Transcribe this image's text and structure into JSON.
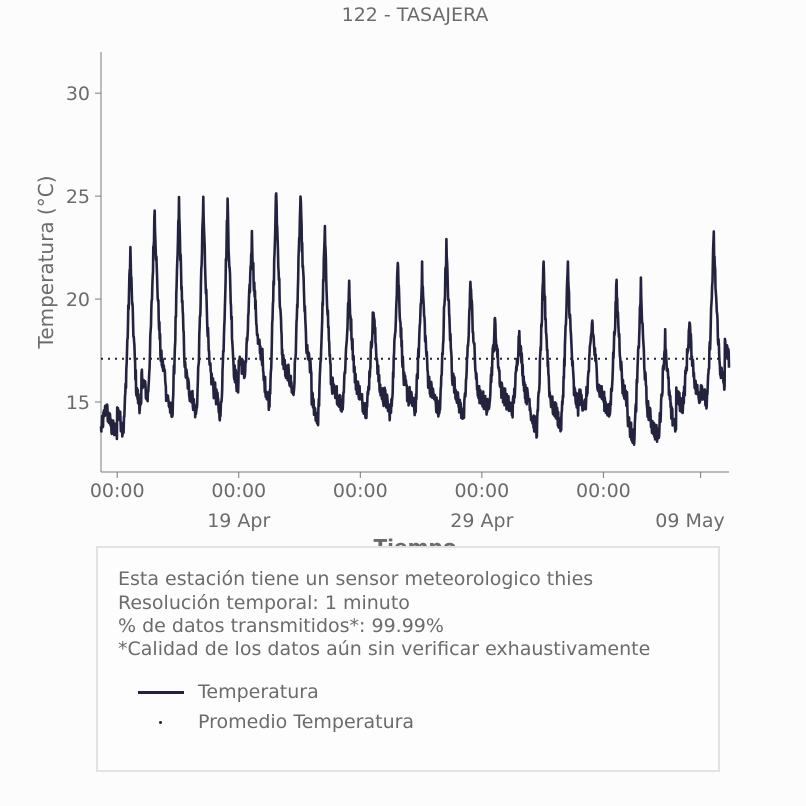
{
  "chart_data": {
    "type": "line",
    "title": "122 - TASAJERA",
    "xlabel": "Tiempo",
    "ylabel": "Temperatura (°C)",
    "ylim": [
      11.6,
      32
    ],
    "yticks": [
      15,
      20,
      25,
      30
    ],
    "x_range": [
      "2025-04-14T08:00",
      "2025-05-10T04:00"
    ],
    "xticks": [
      {
        "at": "2025-04-15T00:00",
        "label": "00:00",
        "sublabel": ""
      },
      {
        "at": "2025-04-20T00:00",
        "label": "00:00",
        "sublabel": "19 Apr"
      },
      {
        "at": "2025-04-25T00:00",
        "label": "00:00",
        "sublabel": ""
      },
      {
        "at": "2025-04-30T00:00",
        "label": "00:00",
        "sublabel": "29 Apr"
      },
      {
        "at": "2025-05-05T00:00",
        "label": "00:00",
        "sublabel": ""
      },
      {
        "at": "2025-05-09T00:00",
        "label": "",
        "sublabel": "09 May"
      }
    ],
    "series": [
      {
        "name": "Temperatura",
        "color": "#23233f",
        "style": "solid",
        "daily_min_max": [
          {
            "date": "2025-04-14",
            "min": 13.4,
            "max": 14.8
          },
          {
            "date": "2025-04-15",
            "min": 13.6,
            "max": 22.4
          },
          {
            "date": "2025-04-16",
            "min": 15.2,
            "max": 24.4
          },
          {
            "date": "2025-04-17",
            "min": 14.3,
            "max": 24.7
          },
          {
            "date": "2025-04-18",
            "min": 14.4,
            "max": 24.8
          },
          {
            "date": "2025-04-19",
            "min": 14.4,
            "max": 24.7
          },
          {
            "date": "2025-04-20",
            "min": 16.4,
            "max": 23.0
          },
          {
            "date": "2025-04-21",
            "min": 15.0,
            "max": 25.3
          },
          {
            "date": "2025-04-22",
            "min": 15.4,
            "max": 25.0
          },
          {
            "date": "2025-04-23",
            "min": 14.1,
            "max": 23.3
          },
          {
            "date": "2025-04-24",
            "min": 14.8,
            "max": 20.5
          },
          {
            "date": "2025-04-25",
            "min": 14.6,
            "max": 19.6
          },
          {
            "date": "2025-04-26",
            "min": 14.4,
            "max": 21.9
          },
          {
            "date": "2025-04-27",
            "min": 14.6,
            "max": 21.4
          },
          {
            "date": "2025-04-28",
            "min": 14.4,
            "max": 22.6
          },
          {
            "date": "2025-04-29",
            "min": 14.3,
            "max": 20.9
          },
          {
            "date": "2025-04-30",
            "min": 14.7,
            "max": 18.9
          },
          {
            "date": "2025-05-01",
            "min": 14.6,
            "max": 18.4
          },
          {
            "date": "2025-05-02",
            "min": 13.6,
            "max": 21.6
          },
          {
            "date": "2025-05-03",
            "min": 13.8,
            "max": 21.6
          },
          {
            "date": "2025-05-04",
            "min": 14.8,
            "max": 19.0
          },
          {
            "date": "2025-05-05",
            "min": 14.4,
            "max": 20.6
          },
          {
            "date": "2025-05-06",
            "min": 13.2,
            "max": 20.6
          },
          {
            "date": "2025-05-07",
            "min": 13.3,
            "max": 18.2
          },
          {
            "date": "2025-05-08",
            "min": 14.8,
            "max": 18.8
          },
          {
            "date": "2025-05-09",
            "min": 14.9,
            "max": 23.0
          },
          {
            "date": "2025-05-10",
            "min": 16.8,
            "max": 24.3
          }
        ]
      },
      {
        "name": "Promedio Temperatura",
        "color": "#23233f",
        "style": "dotted",
        "value": 17.1
      }
    ],
    "legend_placement": "below"
  },
  "info": {
    "lines": [
      "Esta estación tiene un sensor meteorologico thies",
      "Resolución temporal: 1 minuto",
      "% de datos transmitidos*: 99.99%",
      "*Calidad de los datos aún sin verificar exhaustivamente"
    ],
    "legend": [
      {
        "label": "Temperatura",
        "marker": "line"
      },
      {
        "label": "Promedio Temperatura",
        "marker": "dot"
      }
    ]
  }
}
